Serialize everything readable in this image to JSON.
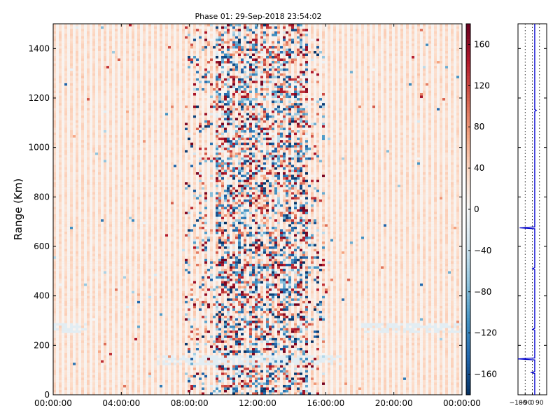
{
  "chart_data": [
    {
      "type": "heatmap",
      "title": "Phase 01: 29-Sep-2018 23:54:02",
      "xlabel": "",
      "ylabel": "Range (Km)",
      "xlim": [
        "00:00:00",
        "24:00:00"
      ],
      "ylim": [
        0,
        1500
      ],
      "x_ticks": [
        "00:00:00",
        "04:00:00",
        "08:00:00",
        "12:00:00",
        "16:00:00",
        "20:00:00",
        "00:00:00"
      ],
      "y_ticks": [
        0,
        200,
        400,
        600,
        800,
        1000,
        1200,
        1400
      ],
      "colormap": "RdBu_r",
      "zlim": [
        -180,
        180
      ],
      "colorbar_ticks": [
        -160,
        -120,
        -80,
        -40,
        0,
        40,
        80,
        120,
        160
      ],
      "colors": {
        "background_bias": "#fcd9c6",
        "noisy_band_hours": [
          7.8,
          16.0
        ],
        "strong_band_hours": [
          9.5,
          15.0
        ]
      }
    },
    {
      "type": "line",
      "title": "",
      "xlabel": "",
      "ylabel": "",
      "xlim": [
        -180,
        180
      ],
      "ylim": [
        0,
        1500
      ],
      "x_ticks": [
        "−180",
        "−90",
        "0",
        "90"
      ],
      "gridlines_x": [
        -90,
        0,
        90
      ],
      "baseline_value": 30,
      "spikes": [
        {
          "range": 1150,
          "value": 50
        },
        {
          "range": 675,
          "value": -160
        },
        {
          "range": 510,
          "value": 5
        },
        {
          "range": 265,
          "value": 5
        },
        {
          "range": 145,
          "value": -180
        },
        {
          "range": 90,
          "value": -10
        }
      ],
      "color": "#0000cc"
    }
  ]
}
